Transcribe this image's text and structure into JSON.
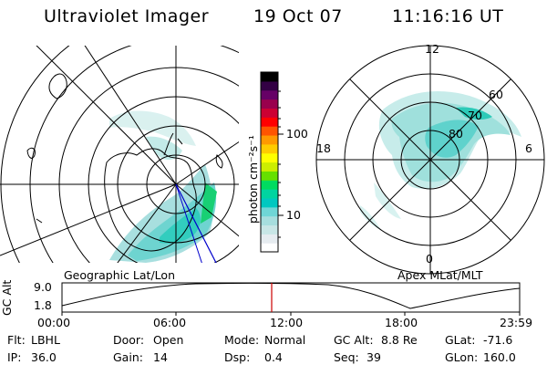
{
  "header": {
    "title": "Ultraviolet Imager",
    "date": "19 Oct 07",
    "time": "11:16:16 UT"
  },
  "colorbar": {
    "unit_label": "photon cm⁻²s⁻¹",
    "ticks": [
      "100",
      "10"
    ],
    "colors": [
      "#ffffff",
      "#e6ecf0",
      "#c8e6e6",
      "#a6dede",
      "#6fd6d6",
      "#00c8c0",
      "#00d4a0",
      "#00dc60",
      "#66e000",
      "#ccee00",
      "#ffff00",
      "#ffcc00",
      "#ff9900",
      "#ff5500",
      "#ff0000",
      "#cc0033",
      "#99004d",
      "#660066",
      "#330044",
      "#000000"
    ]
  },
  "geo_map": {
    "caption": "Geographic Lat/Lon"
  },
  "mag_map": {
    "caption": "Apex MLat/MLT",
    "mlt_labels": [
      "12",
      "18",
      "6",
      "0"
    ],
    "mlat_labels": [
      "60",
      "70",
      "80"
    ]
  },
  "altitude_plot": {
    "ylabel": "GC Alt",
    "y_ticks": [
      "9.0",
      "1.8"
    ],
    "x_ticks": [
      "00:00",
      "06:00",
      "12:00",
      "18:00",
      "23:59"
    ],
    "current_time_marker_color": "#cc0000"
  },
  "footer": {
    "row1": [
      {
        "label": "Flt:",
        "value": "LBHL"
      },
      {
        "label": "Door:",
        "value": "Open"
      },
      {
        "label": "Mode:",
        "value": "Normal"
      },
      {
        "label": "GC Alt:",
        "value": "8.8 Re"
      },
      {
        "label": "GLat:",
        "value": "-71.6"
      }
    ],
    "row2": [
      {
        "label": "IP:",
        "value": "36.0"
      },
      {
        "label": "Gain:",
        "value": "14"
      },
      {
        "label": "Dsp:",
        "value": "0.4"
      },
      {
        "label": "Seq:",
        "value": "39"
      },
      {
        "label": "GLon:",
        "value": "160.0"
      }
    ]
  }
}
